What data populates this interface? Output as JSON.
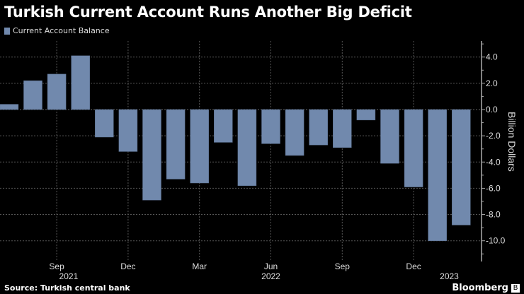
{
  "title": "Turkish Current Account Runs Another Big Deficit",
  "source": "Source: Turkish central bank",
  "brand": "Bloomberg",
  "colors": {
    "bar": "#7189ad",
    "background": "#000000",
    "grid": "#555555"
  },
  "chart_data": {
    "type": "bar",
    "title": "Turkish Current Account Runs Another Big Deficit",
    "ylabel": "Billion Dollars",
    "ylim": [
      -11,
      5
    ],
    "grid": true,
    "legend": "top-left",
    "y_ticks": [
      "4.0",
      "2.0",
      "0.0",
      "-2.0",
      "-4.0",
      "-6.0",
      "-8.0",
      "-10.0"
    ],
    "categories": [
      "Jul 2021",
      "Aug 2021",
      "Sep 2021",
      "Oct 2021",
      "Nov 2021",
      "Dec 2021",
      "Jan 2022",
      "Feb 2022",
      "Mar 2022",
      "Apr 2022",
      "May 2022",
      "Jun 2022",
      "Jul 2022",
      "Aug 2022",
      "Sep 2022",
      "Oct 2022",
      "Nov 2022",
      "Dec 2022",
      "Jan 2023",
      "Feb 2023"
    ],
    "x_ticks": [
      {
        "label": "Sep",
        "at": 2
      },
      {
        "label": "Dec",
        "at": 5
      },
      {
        "label": "Mar",
        "at": 8
      },
      {
        "label": "Jun",
        "at": 11
      },
      {
        "label": "Sep",
        "at": 14
      },
      {
        "label": "Dec",
        "at": 17
      }
    ],
    "year_labels": [
      {
        "label": "2021",
        "at": 2.5
      },
      {
        "label": "2022",
        "at": 11
      },
      {
        "label": "2023",
        "at": 18.5
      }
    ],
    "series": [
      {
        "name": "Current Account Balance",
        "values": [
          0.4,
          2.2,
          2.7,
          4.1,
          -2.1,
          -3.2,
          -6.9,
          -5.3,
          -5.6,
          -2.5,
          -5.8,
          -2.6,
          -3.5,
          -2.7,
          -2.9,
          -0.8,
          -4.1,
          -5.9,
          -10.0,
          -8.8
        ]
      }
    ]
  }
}
